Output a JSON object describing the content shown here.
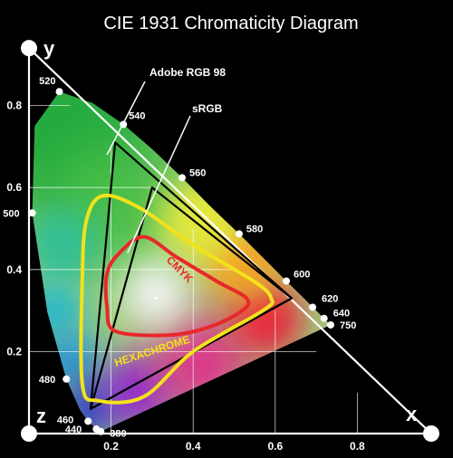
{
  "chart_data": {
    "type": "line",
    "title": "CIE 1931 Chromaticity Diagram",
    "axis_letters": {
      "y": "y",
      "x": "x",
      "z": "z"
    },
    "xlim": [
      0,
      0.9
    ],
    "ylim": [
      0,
      0.9
    ],
    "x_ticks": [
      {
        "value": 0.2,
        "label": "0.2"
      },
      {
        "value": 0.4,
        "label": "0.4"
      },
      {
        "value": 0.6,
        "label": "0.6"
      },
      {
        "value": 0.8,
        "label": "0.8"
      }
    ],
    "y_ticks": [
      {
        "value": 0.2,
        "label": "0.2"
      },
      {
        "value": 0.4,
        "label": "0.4"
      },
      {
        "value": 0.6,
        "label": "0.6"
      },
      {
        "value": 0.8,
        "label": "0.8"
      }
    ],
    "spectral_locus": [
      [
        0.175,
        0.005
      ],
      [
        0.174,
        0.005
      ],
      [
        0.172,
        0.005
      ],
      [
        0.166,
        0.009
      ],
      [
        0.144,
        0.03
      ],
      [
        0.124,
        0.058
      ],
      [
        0.091,
        0.133
      ],
      [
        0.045,
        0.295
      ],
      [
        0.008,
        0.538
      ],
      [
        0.014,
        0.75
      ],
      [
        0.074,
        0.834
      ],
      [
        0.155,
        0.806
      ],
      [
        0.23,
        0.754
      ],
      [
        0.302,
        0.692
      ],
      [
        0.373,
        0.624
      ],
      [
        0.441,
        0.555
      ],
      [
        0.512,
        0.487
      ],
      [
        0.575,
        0.424
      ],
      [
        0.627,
        0.372
      ],
      [
        0.666,
        0.334
      ],
      [
        0.692,
        0.308
      ],
      [
        0.735,
        0.265
      ]
    ],
    "wavelength_labels": [
      {
        "nm": "380",
        "x": 0.175,
        "y": 0.005
      },
      {
        "nm": "440",
        "x": 0.164,
        "y": 0.011
      },
      {
        "nm": "460",
        "x": 0.144,
        "y": 0.03
      },
      {
        "nm": "480",
        "x": 0.091,
        "y": 0.133
      },
      {
        "nm": "500",
        "x": 0.008,
        "y": 0.538
      },
      {
        "nm": "520",
        "x": 0.074,
        "y": 0.834
      },
      {
        "nm": "540",
        "x": 0.23,
        "y": 0.754
      },
      {
        "nm": "560",
        "x": 0.373,
        "y": 0.624
      },
      {
        "nm": "580",
        "x": 0.512,
        "y": 0.487
      },
      {
        "nm": "600",
        "x": 0.627,
        "y": 0.372
      },
      {
        "nm": "620",
        "x": 0.691,
        "y": 0.308
      },
      {
        "nm": "640",
        "x": 0.719,
        "y": 0.281
      },
      {
        "nm": "750",
        "x": 0.735,
        "y": 0.265
      }
    ],
    "gamuts": [
      {
        "name": "Adobe RGB 98",
        "color": "#000000",
        "points": [
          [
            0.64,
            0.33
          ],
          [
            0.21,
            0.71
          ],
          [
            0.15,
            0.06
          ]
        ]
      },
      {
        "name": "sRGB",
        "color": "#000000",
        "points": [
          [
            0.64,
            0.33
          ],
          [
            0.3,
            0.6
          ],
          [
            0.15,
            0.06
          ]
        ]
      },
      {
        "name": "HEXACHROME",
        "color": "#f2e21b",
        "points": [
          [
            0.18,
            0.58
          ],
          [
            0.27,
            0.55
          ],
          [
            0.4,
            0.46
          ],
          [
            0.55,
            0.37
          ],
          [
            0.59,
            0.33
          ],
          [
            0.57,
            0.3
          ],
          [
            0.4,
            0.2
          ],
          [
            0.28,
            0.09
          ],
          [
            0.17,
            0.08
          ],
          [
            0.13,
            0.12
          ],
          [
            0.13,
            0.38
          ],
          [
            0.14,
            0.52
          ]
        ]
      },
      {
        "name": "CMYK",
        "color": "#e8282a",
        "points": [
          [
            0.22,
            0.44
          ],
          [
            0.28,
            0.48
          ],
          [
            0.36,
            0.43
          ],
          [
            0.46,
            0.37
          ],
          [
            0.53,
            0.33
          ],
          [
            0.52,
            0.3
          ],
          [
            0.44,
            0.26
          ],
          [
            0.34,
            0.24
          ],
          [
            0.21,
            0.25
          ],
          [
            0.19,
            0.31
          ],
          [
            0.19,
            0.39
          ]
        ]
      }
    ],
    "gamut_labels": [
      {
        "text": "Adobe RGB 98",
        "pointer_to": [
          0.19,
          0.68
        ]
      },
      {
        "text": "sRGB",
        "pointer_to": [
          0.24,
          0.44
        ]
      },
      {
        "text": "CMYK",
        "angle": 45
      },
      {
        "text": "HEXACHROME",
        "angle": -18
      }
    ],
    "white_point_x": 0.31,
    "white_point_y": 0.33,
    "grid": true,
    "legend": "none",
    "colors": {
      "background": "#000000",
      "axes": "#ffffff",
      "text": "#ffffff",
      "adobe_rgb": "#000000",
      "srgb": "#000000",
      "hexachrome": "#f2e21b",
      "cmyk": "#e8282a"
    }
  }
}
